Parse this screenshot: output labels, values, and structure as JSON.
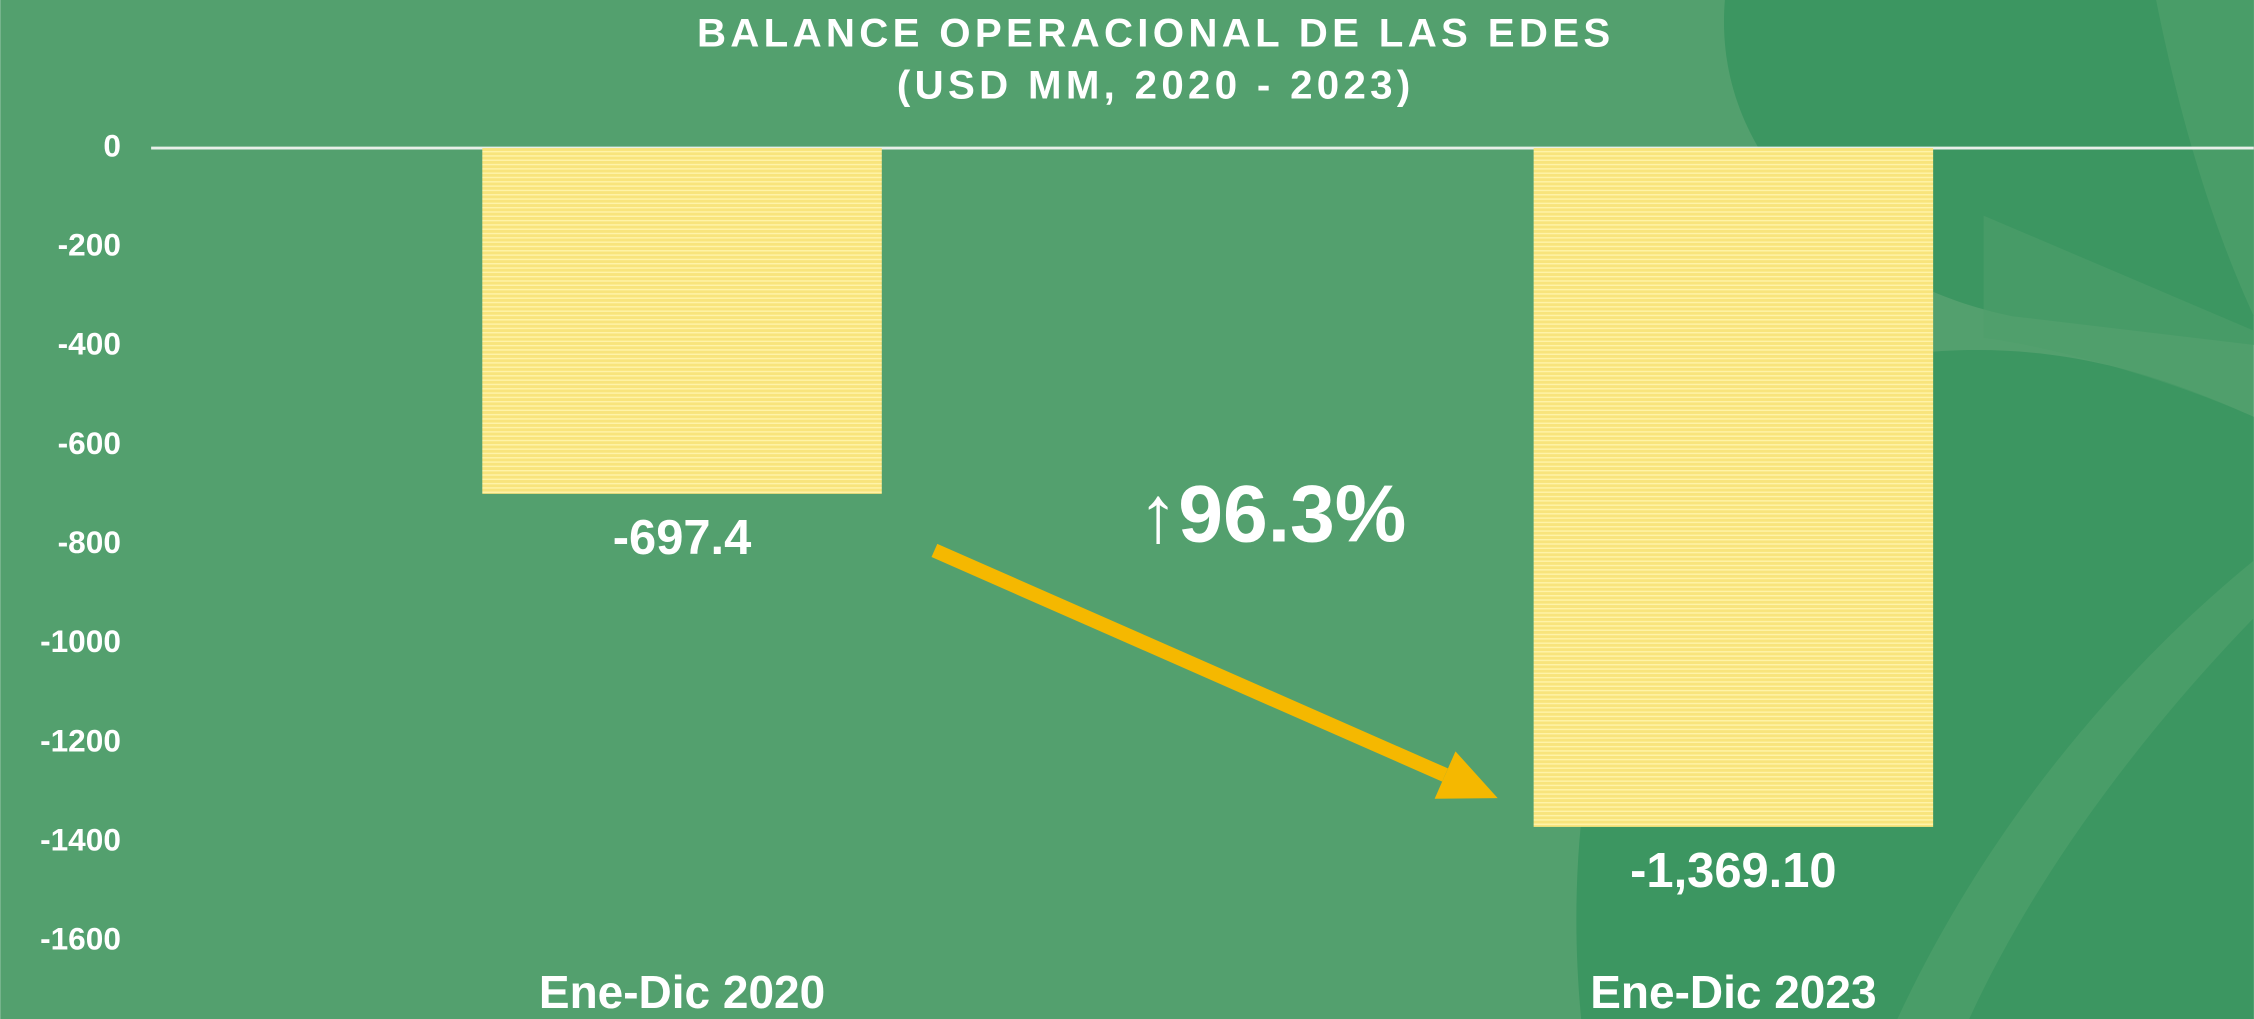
{
  "chart_data": {
    "type": "bar",
    "title": "BALANCE OPERACIONAL DE LAS EDES",
    "subtitle": "(USD MM, 2020 - 2023)",
    "categories": [
      "Ene-Dic 2020",
      "Ene-Dic 2023"
    ],
    "values": [
      -697.4,
      -1369.1
    ],
    "value_labels": [
      "-697.4",
      "-1,369.10"
    ],
    "color": "#f8e47c",
    "ylim": [
      -1600,
      0
    ],
    "yticks": [
      0,
      -200,
      -400,
      -600,
      -800,
      -1000,
      -1200,
      -1400,
      -1600
    ],
    "grid": false,
    "annotation": "↑96.3%",
    "annotation_color": "#f5b800"
  }
}
